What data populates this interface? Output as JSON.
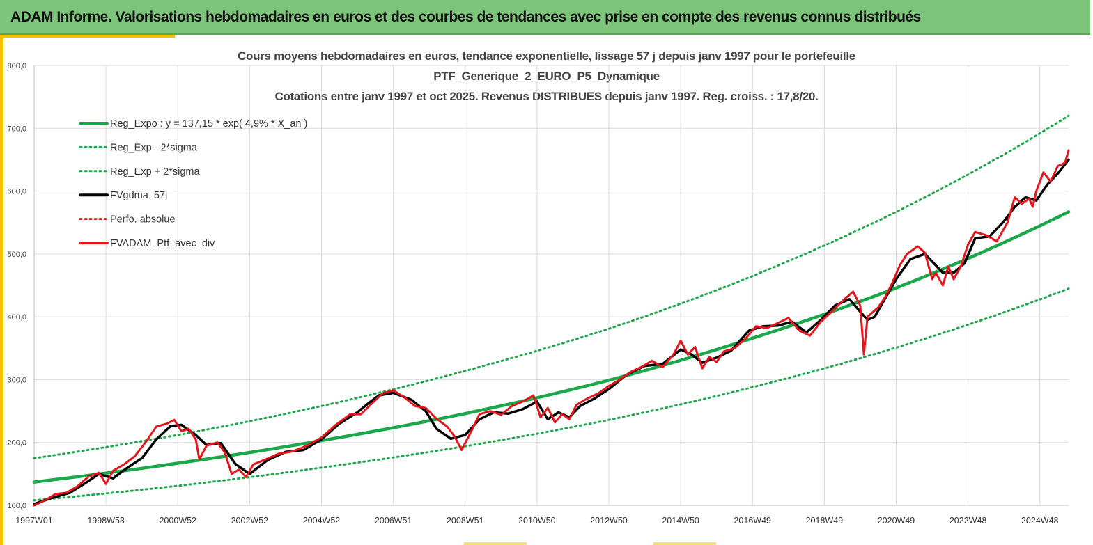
{
  "header": {
    "title": "ADAM Informe. Valorisations hebdomadaires en euros et des courbes de tendances avec prise en compte des revenus connus distribués"
  },
  "colors": {
    "banner": "#7cc47a",
    "trend": "#1aa84b",
    "avg": "#000000",
    "perf": "#e8141b",
    "grid": "#d9d9d9"
  },
  "chart_data": {
    "type": "line",
    "title_lines": [
      "Cours moyens hebdomadaires  en euros, tendance exponentielle, lissage 57 j depuis janv 1997 pour le portefeuille",
      "PTF_Generique_2_EURO_P5_Dynamique",
      "Cotations entre janv 1997 et oct 2025. Revenus DISTRIBUES depuis janv 1997. Reg. croiss. : 17,8/20."
    ],
    "ylim": [
      100,
      800
    ],
    "xlim": [
      1997.0,
      2025.8
    ],
    "grid": true,
    "y_ticks": [
      "100,0",
      "200,0",
      "300,0",
      "400,0",
      "500,0",
      "600,0",
      "700,0",
      "800,0"
    ],
    "x_ticks": [
      {
        "label": "1997W01",
        "x": 1997.0
      },
      {
        "label": "1998W53",
        "x": 1999.0
      },
      {
        "label": "2000W52",
        "x": 2001.0
      },
      {
        "label": "2002W52",
        "x": 2003.0
      },
      {
        "label": "2004W52",
        "x": 2005.0
      },
      {
        "label": "2006W51",
        "x": 2007.0
      },
      {
        "label": "2008W51",
        "x": 2009.0
      },
      {
        "label": "2010W50",
        "x": 2011.0
      },
      {
        "label": "2012W50",
        "x": 2013.0
      },
      {
        "label": "2014W50",
        "x": 2015.0
      },
      {
        "label": "2016W49",
        "x": 2017.0
      },
      {
        "label": "2018W49",
        "x": 2019.0
      },
      {
        "label": "2020W49",
        "x": 2021.0
      },
      {
        "label": "2022W48",
        "x": 2023.0
      },
      {
        "label": "2024W48",
        "x": 2025.0
      }
    ],
    "legend_position": "top-left",
    "legend": [
      {
        "label": "Reg_Expo : y = 137,15 * exp( 4,9% *  X_an )",
        "color": "#1aa84b",
        "style": "solid"
      },
      {
        "label": "Reg_Exp - 2*sigma",
        "color": "#1aa84b",
        "style": "dotted"
      },
      {
        "label": "Reg_Exp + 2*sigma",
        "color": "#1aa84b",
        "style": "dotted"
      },
      {
        "label": "FVgdma_57j",
        "color": "#000000",
        "style": "solid"
      },
      {
        "label": "Perfo. absolue",
        "color": "#e8141b",
        "style": "dotted"
      },
      {
        "label": "FVADAM_Ptf_avec_div",
        "color": "#e8141b",
        "style": "solid"
      }
    ],
    "series": [
      {
        "name": "Reg_Expo",
        "style": "solid",
        "x": [
          1997.0,
          2001.0,
          2005.0,
          2009.0,
          2013.0,
          2017.0,
          2021.0,
          2025.8
        ],
        "values": [
          137,
          167,
          203,
          246,
          299,
          366,
          446,
          567
        ]
      },
      {
        "name": "Reg_Exp - 2*sigma",
        "style": "dotted",
        "x": [
          1997.0,
          2001.0,
          2005.0,
          2009.0,
          2013.0,
          2017.0,
          2021.0,
          2025.8
        ],
        "values": [
          108,
          131,
          160,
          194,
          236,
          288,
          351,
          445
        ]
      },
      {
        "name": "Reg_Exp + 2*sigma",
        "style": "dotted",
        "x": [
          1997.0,
          2001.0,
          2005.0,
          2009.0,
          2013.0,
          2017.0,
          2021.0,
          2025.8
        ],
        "values": [
          175,
          212,
          258,
          314,
          381,
          465,
          567,
          720
        ]
      },
      {
        "name": "FVgdma_57j",
        "style": "solid",
        "x": [
          1997.0,
          1997.5,
          1998.0,
          1998.5,
          1998.8,
          1999.2,
          1999.6,
          2000.0,
          2000.4,
          2000.8,
          2001.1,
          2001.5,
          2001.8,
          2002.2,
          2002.6,
          2003.0,
          2003.5,
          2004.0,
          2004.5,
          2005.0,
          2005.5,
          2006.0,
          2006.3,
          2006.6,
          2007.0,
          2007.5,
          2007.9,
          2008.2,
          2008.6,
          2009.0,
          2009.4,
          2009.8,
          2010.2,
          2010.6,
          2011.0,
          2011.3,
          2011.6,
          2011.9,
          2012.2,
          2012.6,
          2013.0,
          2013.5,
          2014.0,
          2014.5,
          2015.0,
          2015.3,
          2015.6,
          2016.0,
          2016.4,
          2016.9,
          2017.3,
          2017.7,
          2018.1,
          2018.5,
          2018.9,
          2019.3,
          2019.7,
          2020.0,
          2020.2,
          2020.4,
          2020.7,
          2021.0,
          2021.4,
          2021.8,
          2022.0,
          2022.3,
          2022.6,
          2022.9,
          2023.2,
          2023.6,
          2024.0,
          2024.3,
          2024.6,
          2024.9,
          2025.2,
          2025.5,
          2025.8
        ],
        "values": [
          102,
          112,
          120,
          138,
          150,
          143,
          160,
          175,
          205,
          226,
          228,
          212,
          196,
          199,
          166,
          150,
          172,
          185,
          188,
          205,
          230,
          248,
          262,
          275,
          279,
          268,
          250,
          222,
          206,
          212,
          237,
          248,
          246,
          253,
          265,
          237,
          248,
          240,
          258,
          270,
          285,
          308,
          322,
          325,
          348,
          340,
          327,
          335,
          346,
          378,
          385,
          386,
          392,
          375,
          395,
          418,
          428,
          408,
          395,
          400,
          430,
          460,
          492,
          500,
          488,
          470,
          470,
          485,
          525,
          528,
          552,
          575,
          590,
          585,
          610,
          628,
          650
        ]
      },
      {
        "name": "FVADAM_Ptf_avec_div",
        "style": "solid",
        "x": [
          1997.0,
          1997.3,
          1997.6,
          1997.9,
          1998.2,
          1998.5,
          1998.8,
          1999.0,
          1999.2,
          1999.5,
          1999.8,
          2000.1,
          2000.4,
          2000.7,
          2000.9,
          2001.1,
          2001.3,
          2001.5,
          2001.6,
          2001.8,
          2002.1,
          2002.3,
          2002.5,
          2002.7,
          2002.9,
          2003.1,
          2003.4,
          2003.8,
          2004.2,
          2004.6,
          2005.0,
          2005.4,
          2005.8,
          2006.1,
          2006.4,
          2006.7,
          2007.0,
          2007.3,
          2007.6,
          2007.9,
          2008.2,
          2008.5,
          2008.7,
          2008.9,
          2009.1,
          2009.4,
          2009.7,
          2010.0,
          2010.3,
          2010.6,
          2010.9,
          2011.1,
          2011.3,
          2011.5,
          2011.7,
          2011.9,
          2012.1,
          2012.4,
          2012.7,
          2013.0,
          2013.3,
          2013.6,
          2013.9,
          2014.2,
          2014.5,
          2014.8,
          2015.0,
          2015.2,
          2015.4,
          2015.6,
          2015.8,
          2016.0,
          2016.2,
          2016.5,
          2016.8,
          2017.1,
          2017.4,
          2017.7,
          2018.0,
          2018.3,
          2018.6,
          2018.9,
          2019.2,
          2019.5,
          2019.8,
          2020.0,
          2020.1,
          2020.2,
          2020.3,
          2020.5,
          2020.7,
          2020.9,
          2021.1,
          2021.3,
          2021.6,
          2021.8,
          2022.0,
          2022.1,
          2022.3,
          2022.45,
          2022.6,
          2022.8,
          2023.0,
          2023.2,
          2023.5,
          2023.8,
          2024.1,
          2024.3,
          2024.5,
          2024.7,
          2024.8,
          2024.9,
          2025.1,
          2025.3,
          2025.5,
          2025.7,
          2025.8
        ],
        "values": [
          100,
          108,
          118,
          120,
          130,
          145,
          152,
          134,
          155,
          165,
          178,
          200,
          225,
          230,
          236,
          218,
          222,
          205,
          173,
          195,
          200,
          185,
          150,
          157,
          145,
          165,
          172,
          182,
          186,
          195,
          208,
          228,
          245,
          245,
          262,
          278,
          283,
          272,
          258,
          255,
          238,
          225,
          210,
          188,
          210,
          245,
          250,
          244,
          258,
          265,
          275,
          240,
          255,
          232,
          245,
          237,
          260,
          270,
          278,
          290,
          300,
          312,
          320,
          330,
          320,
          340,
          362,
          340,
          352,
          318,
          336,
          328,
          345,
          350,
          365,
          385,
          382,
          390,
          398,
          378,
          370,
          392,
          408,
          425,
          440,
          418,
          340,
          400,
          405,
          415,
          432,
          455,
          482,
          500,
          512,
          502,
          460,
          470,
          450,
          480,
          460,
          480,
          515,
          535,
          530,
          520,
          550,
          590,
          580,
          588,
          575,
          600,
          630,
          615,
          640,
          645,
          665
        ]
      }
    ]
  }
}
